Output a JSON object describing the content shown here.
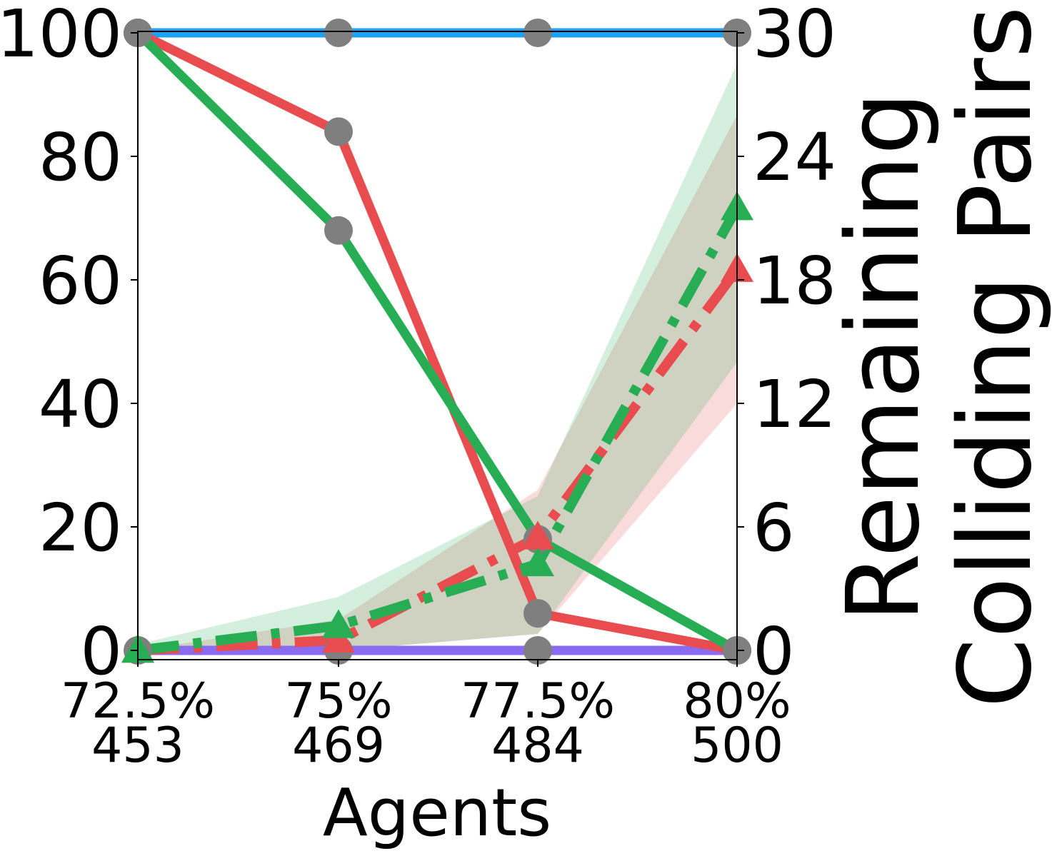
{
  "chart_data": {
    "type": "line",
    "x_categories": [
      {
        "pct": "72.5%",
        "agents": "453"
      },
      {
        "pct": "75%",
        "agents": "469"
      },
      {
        "pct": "77.5%",
        "agents": "484"
      },
      {
        "pct": "80%",
        "agents": "500"
      }
    ],
    "xlabel": "Agents",
    "ylabel_left": "",
    "ylabel_right": "Remaining\nColliding Pairs",
    "ylim_left": [
      0,
      100
    ],
    "yticks_left": [
      0,
      20,
      40,
      60,
      80,
      100
    ],
    "ylim_right": [
      0,
      30
    ],
    "yticks_right": [
      0,
      6,
      12,
      18,
      24,
      30
    ],
    "grid": false,
    "legend": "none",
    "series": [
      {
        "axis": "left",
        "style": "solid",
        "color": "#1aa3f5",
        "values": [
          100,
          100,
          100,
          100
        ],
        "markers": "circle"
      },
      {
        "axis": "left",
        "style": "solid",
        "color": "#8b6cf0",
        "values": [
          0,
          0,
          0,
          0
        ],
        "markers": "circle"
      },
      {
        "axis": "left",
        "style": "solid",
        "color": "#e84c4f",
        "values": [
          100,
          84,
          6,
          0
        ],
        "markers": "circle"
      },
      {
        "axis": "left",
        "style": "solid",
        "color": "#27ae55",
        "values": [
          100,
          68,
          18,
          0
        ],
        "markers": "circle"
      },
      {
        "axis": "right",
        "style": "dashdot",
        "color": "#e84c4f",
        "values": [
          0,
          0.5,
          5.5,
          18.5
        ],
        "band": {
          "low": [
            0,
            0,
            0.8,
            12
          ],
          "high": [
            0,
            1.5,
            7.8,
            26
          ]
        },
        "markers": "triangle"
      },
      {
        "axis": "right",
        "style": "dashdot",
        "color": "#27ae55",
        "values": [
          0,
          1.2,
          4.2,
          21.5
        ],
        "band": {
          "low": [
            0,
            0,
            0.8,
            14
          ],
          "high": [
            0.3,
            2.6,
            7.5,
            28.5
          ]
        },
        "markers": "triangle"
      }
    ]
  }
}
